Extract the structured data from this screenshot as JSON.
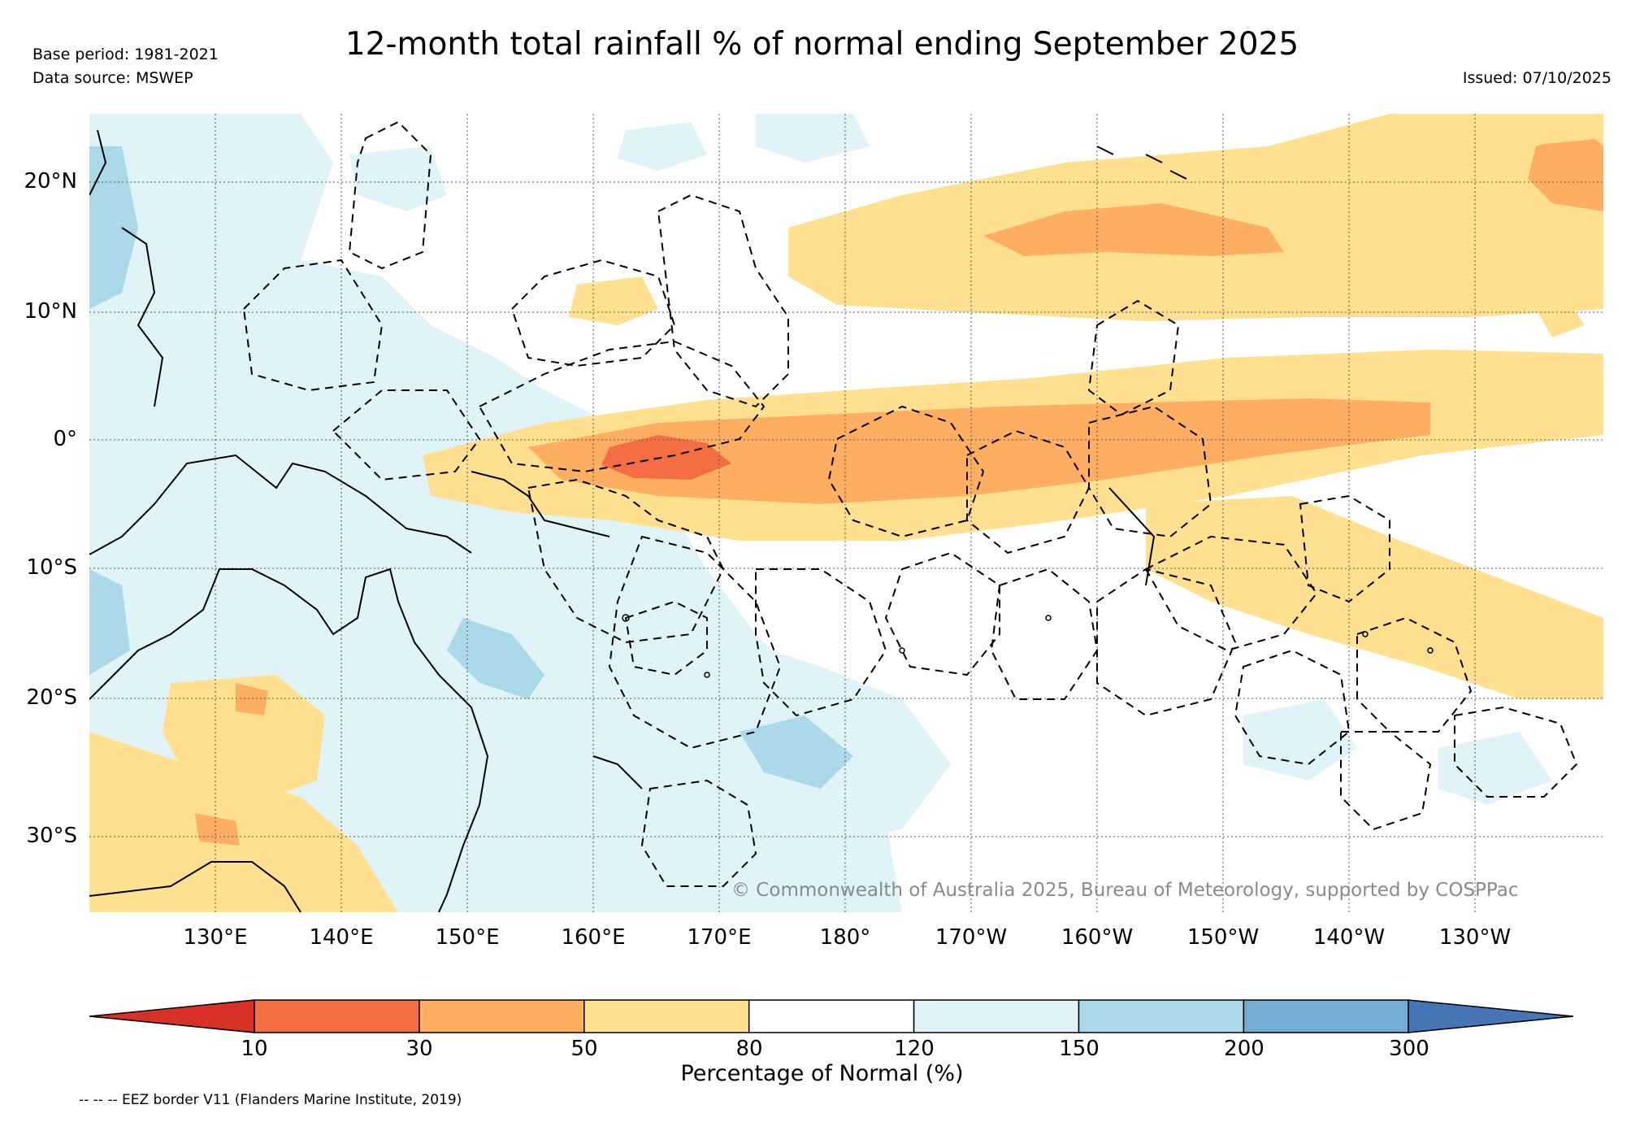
{
  "header": {
    "title": "12-month total rainfall % of normal ending September 2025",
    "base_period": "Base period: 1981-2021",
    "data_source": "Data source: MSWEP",
    "issued": "Issued: 07/10/2025"
  },
  "map": {
    "lat_labels": [
      "20°N",
      "10°N",
      "0°",
      "10°S",
      "20°S",
      "30°S"
    ],
    "lon_labels": [
      "130°E",
      "140°E",
      "150°E",
      "160°E",
      "170°E",
      "180°",
      "170°W",
      "160°W",
      "150°W",
      "140°W",
      "130°W"
    ],
    "copyright": "© Commonwealth of Australia 2025, Bureau of Meteorology, supported by COSPPac"
  },
  "colorbar": {
    "label": "Percentage of Normal (%)",
    "ticks": [
      "10",
      "30",
      "50",
      "80",
      "120",
      "150",
      "200",
      "300"
    ],
    "colors": [
      "#d73027",
      "#f46d43",
      "#fdae61",
      "#fee090",
      "#ffffff",
      "#e0f3f8",
      "#abd9e9",
      "#74add1",
      "#4575b4"
    ]
  },
  "footer": {
    "eez_note": "-- -- -- EEZ border V11 (Flanders Marine Institute, 2019)"
  }
}
